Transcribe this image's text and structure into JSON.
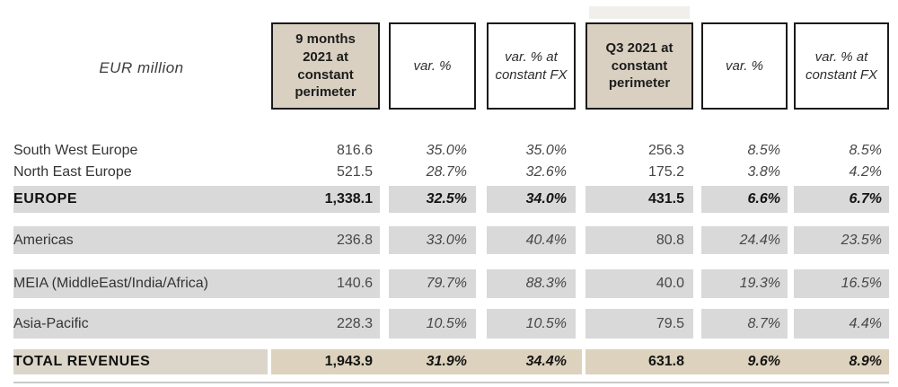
{
  "table": {
    "unit_label": "EUR million",
    "columns": [
      {
        "label": "9 months\n2021 at\nconstant\nperimeter",
        "style": "beige"
      },
      {
        "label": "var. %",
        "style": "white"
      },
      {
        "label": "var. % at\nconstant FX",
        "style": "white"
      },
      {
        "label": "Q3 2021 at\nconstant\nperimeter",
        "style": "beige"
      },
      {
        "label": "var. %",
        "style": "white"
      },
      {
        "label": "var. % at\nconstant FX",
        "style": "white"
      }
    ],
    "rows": [
      {
        "label": "South West Europe",
        "style": "plain",
        "values": [
          "816.6",
          "35.0%",
          "35.0%",
          "256.3",
          "8.5%",
          "8.5%"
        ]
      },
      {
        "label": "North East Europe",
        "style": "plain",
        "values": [
          "521.5",
          "28.7%",
          "32.6%",
          "175.2",
          "3.8%",
          "4.2%"
        ]
      },
      {
        "label": "EUROPE",
        "style": "gray-bold",
        "values": [
          "1,338.1",
          "32.5%",
          "34.0%",
          "431.5",
          "6.6%",
          "6.7%"
        ]
      },
      {
        "label": "Americas",
        "style": "gray",
        "values": [
          "236.8",
          "33.0%",
          "40.4%",
          "80.8",
          "24.4%",
          "23.5%"
        ]
      },
      {
        "label": "MEIA (MiddleEast/India/Africa)",
        "style": "gray",
        "values": [
          "140.6",
          "79.7%",
          "88.3%",
          "40.0",
          "19.3%",
          "16.5%"
        ]
      },
      {
        "label": "Asia-Pacific",
        "style": "gray",
        "values": [
          "228.3",
          "10.5%",
          "10.5%",
          "79.5",
          "8.7%",
          "4.4%"
        ]
      },
      {
        "label": "TOTAL REVENUES",
        "style": "total",
        "values": [
          "1,943.9",
          "31.9%",
          "34.4%",
          "631.8",
          "9.6%",
          "8.9%"
        ]
      }
    ]
  },
  "colors": {
    "header_beige": "#d9d0c1",
    "row_gray": "#d9d9d9",
    "total_label_beige": "#dcd6ca",
    "total_value_beige": "#ddd2bd",
    "border": "#1a1a1a"
  }
}
